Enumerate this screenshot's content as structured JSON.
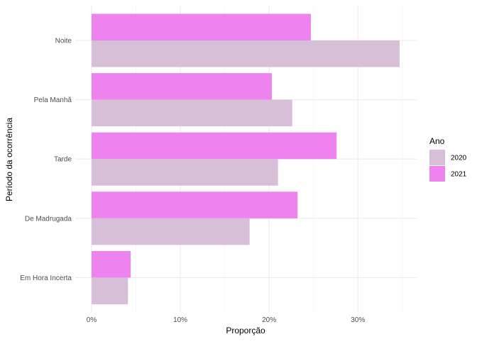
{
  "chart_data": {
    "type": "bar",
    "orientation": "horizontal",
    "categories": [
      "Noite",
      "Pela Manhã",
      "Tarde",
      "De Madrugada",
      "Em Hora Incerta"
    ],
    "series": [
      {
        "name": "2020",
        "values": [
          0.347,
          0.226,
          0.21,
          0.178,
          0.041
        ],
        "color": "#d8bfd8"
      },
      {
        "name": "2021",
        "values": [
          0.247,
          0.203,
          0.276,
          0.232,
          0.044
        ],
        "color": "#ee82ee"
      }
    ],
    "xlabel": "Proporção",
    "ylabel": "Período da ocorrência",
    "xlim": [
      0,
      0.365
    ],
    "x_ticks": [
      0,
      0.1,
      0.2,
      0.3
    ],
    "x_tick_labels": [
      "0%",
      "10%",
      "20%",
      "30%"
    ],
    "grid": true,
    "legend": {
      "title": "Ano",
      "position": "right"
    }
  }
}
